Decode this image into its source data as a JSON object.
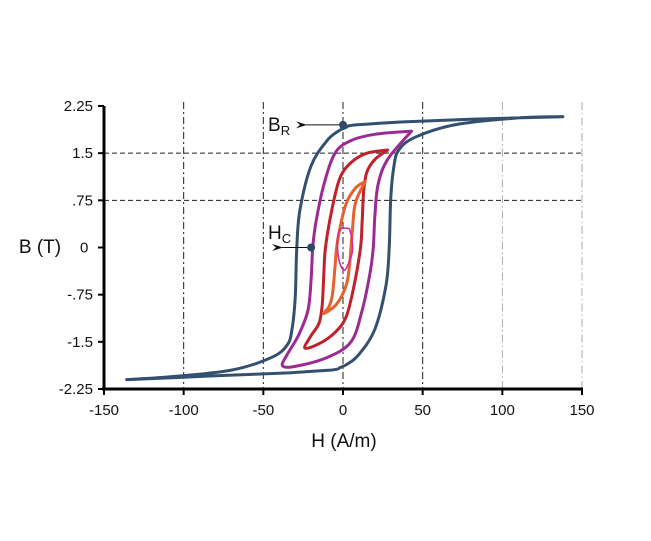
{
  "chart_data": {
    "type": "line",
    "title": "",
    "xlabel": "H (A/m)",
    "ylabel": "B (T)",
    "xlim": [
      -150,
      150
    ],
    "ylim": [
      -2.25,
      2.25
    ],
    "xticks": [
      -150,
      -100,
      -50,
      0,
      50,
      100,
      150
    ],
    "xtick_labels": [
      "-150",
      "-100",
      "-50",
      "0",
      "50",
      "100",
      "150"
    ],
    "yticks": [
      2.25,
      1.5,
      0.75,
      0,
      -0.75,
      -1.5,
      -2.25
    ],
    "ytick_labels": [
      "2.25",
      "1.5",
      ".75",
      "0",
      "-.75",
      "-1.5",
      "-2.25"
    ],
    "grid": {
      "vertical_dashdot": [
        -100,
        -50,
        0,
        50,
        100,
        150
      ],
      "horizontal_dashed": [
        1.5,
        0.75
      ]
    },
    "series": [
      {
        "color": "#33506f",
        "closed": true,
        "x": [
          138,
          80,
          40,
          20,
          8,
          5,
          3,
          2,
          1,
          -3,
          -10,
          -20,
          -27,
          -29,
          -30,
          -32,
          -35,
          -45,
          -70,
          -110,
          -135,
          -80,
          -40,
          -20,
          -8,
          -5,
          -3,
          -2,
          -1,
          3,
          10,
          20,
          27,
          29,
          30,
          32,
          35,
          45,
          70,
          110,
          138
        ],
        "y": [
          2.08,
          2.04,
          2.0,
          1.97,
          1.95,
          1.94,
          1.93,
          1.91,
          1.9,
          1.85,
          1.7,
          1.3,
          0.6,
          0.0,
          -0.8,
          -1.3,
          -1.55,
          -1.75,
          -1.95,
          -2.06,
          -2.1,
          -2.04,
          -2.0,
          -1.97,
          -1.95,
          -1.94,
          -1.93,
          -1.91,
          -1.9,
          -1.85,
          -1.7,
          -1.3,
          -0.6,
          0.0,
          0.8,
          1.3,
          1.55,
          1.75,
          1.95,
          2.06,
          2.08
        ]
      },
      {
        "color": "#9b2b93",
        "closed": true,
        "x": [
          43,
          20,
          5,
          -5,
          -12,
          -17,
          -19,
          -20,
          -22,
          -28,
          -35,
          -38,
          -30,
          -10,
          5,
          12,
          17,
          19,
          20,
          22,
          28,
          43
        ],
        "y": [
          1.85,
          1.8,
          1.7,
          1.5,
          1.0,
          0.4,
          0.0,
          -0.5,
          -1.0,
          -1.4,
          -1.7,
          -1.88,
          -1.89,
          -1.75,
          -1.5,
          -1.0,
          -0.4,
          0.0,
          0.5,
          1.0,
          1.4,
          1.85
        ]
      },
      {
        "color": "#c0212b",
        "closed": true,
        "x": [
          28,
          15,
          5,
          -2,
          -7,
          -11,
          -12,
          -13,
          -15,
          -20,
          -24,
          -15,
          -5,
          2,
          7,
          11,
          12,
          13,
          15,
          20,
          28
        ],
        "y": [
          1.55,
          1.5,
          1.35,
          1.1,
          0.6,
          0.0,
          -0.4,
          -0.9,
          -1.2,
          -1.4,
          -1.6,
          -1.53,
          -1.35,
          -1.1,
          -0.6,
          0.0,
          0.4,
          0.9,
          1.2,
          1.4,
          1.55
        ]
      },
      {
        "color": "#e8612c",
        "closed": true,
        "x": [
          14,
          8,
          2,
          -2,
          -4,
          -5,
          -6,
          -7,
          -9,
          -12,
          -4,
          2,
          4,
          5,
          6,
          7,
          9,
          14
        ],
        "y": [
          1.05,
          0.95,
          0.7,
          0.3,
          0.0,
          -0.3,
          -0.6,
          -0.8,
          -0.95,
          -1.05,
          -0.9,
          -0.6,
          -0.3,
          0.0,
          0.3,
          0.6,
          0.8,
          1.05
        ]
      },
      {
        "color": "#d42a9e",
        "closed": true,
        "x": [
          4,
          5.5,
          6,
          4,
          1,
          -2,
          -3.5,
          -3,
          -1,
          1,
          4
        ],
        "y": [
          0.3,
          0.15,
          -0.05,
          -0.22,
          -0.36,
          -0.25,
          0.0,
          0.22,
          0.3,
          0.31,
          0.3
        ]
      }
    ],
    "markers": [
      {
        "x": 0,
        "y": 1.95,
        "color": "#2e4a6a"
      },
      {
        "x": -20,
        "y": 0.0,
        "color": "#2e4a6a"
      }
    ],
    "annotations": [
      {
        "label": "B",
        "sub": "R",
        "target_x": 0,
        "target_y": 1.95
      },
      {
        "label": "H",
        "sub": "C",
        "target_x": -20,
        "target_y": 0.0
      }
    ]
  }
}
